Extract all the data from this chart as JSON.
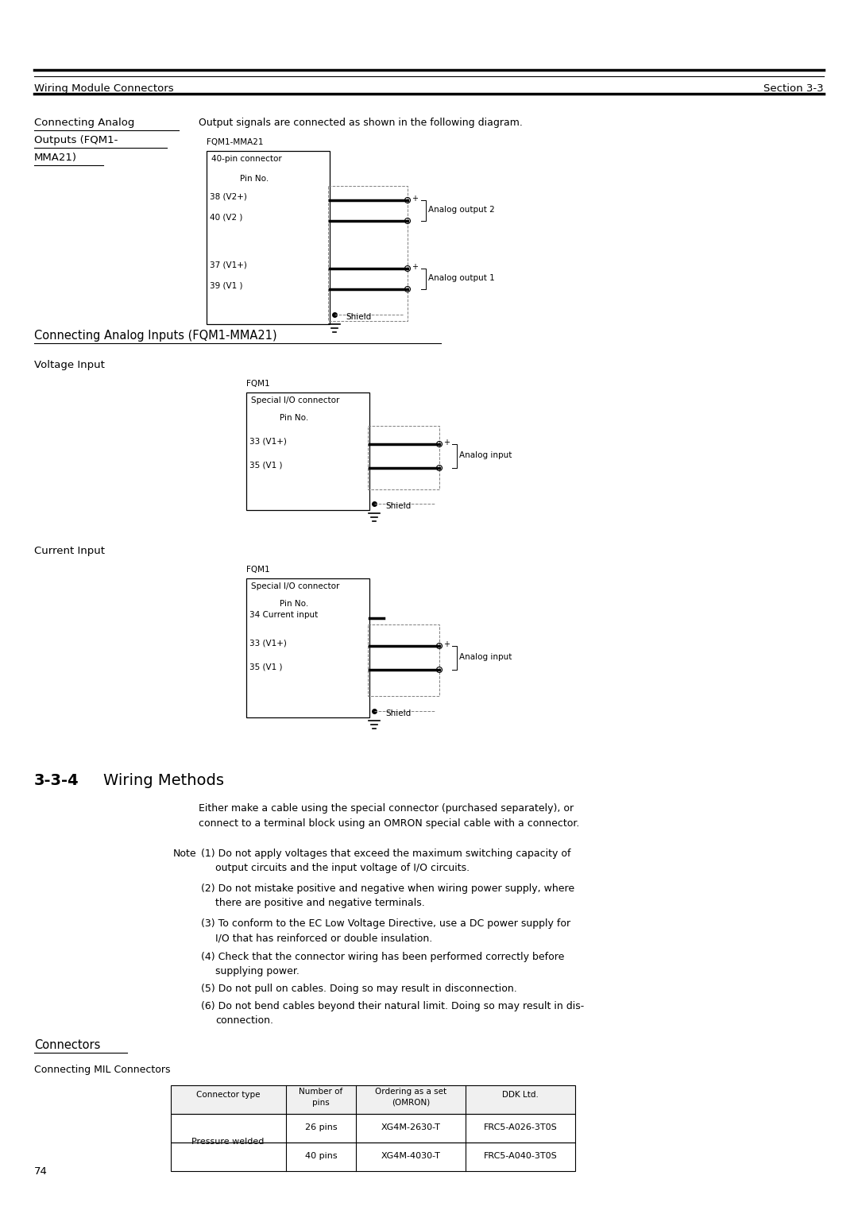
{
  "page_num": "74",
  "header_left": "Wiring Module Connectors",
  "header_right": "Section 3-3",
  "bg_color": "#ffffff",
  "section1_line1": "Connecting Analog",
  "section1_line2": "Outputs (FQM1-",
  "section1_line3": "MMA21)",
  "section1_desc": "Output signals are connected as shown in the following diagram.",
  "diag1_title": "FQM1-MMA21",
  "diag1_connector": "40-pin connector",
  "diag1_pin_no": "Pin No.",
  "diag1_pins": [
    "38 (V2+)",
    "40 (V2 )",
    "37 (V1+)",
    "39 (V1 )"
  ],
  "diag1_out_labels": [
    "Analog output 2",
    "Analog output 1"
  ],
  "shield_label": "Shield",
  "section2_title": "Connecting Analog Inputs (FQM1-MMA21)",
  "section2_sub1": "Voltage Input",
  "diag2_title": "FQM1",
  "diag2_connector": "Special I/O connector",
  "diag2_pin_no": "Pin No.",
  "diag2_pins": [
    "33 (V1+)",
    "35 (V1 )"
  ],
  "diag2_in_label": "Analog input",
  "section2_sub2": "Current Input",
  "diag3_title": "FQM1",
  "diag3_connector": "Special I/O connector",
  "diag3_pin_no": "Pin No.",
  "diag3_extra": "34 Current input",
  "diag3_pins": [
    "33 (V1+)",
    "35 (V1 )"
  ],
  "diag3_in_label": "Analog input",
  "wm_title_num": "3-3-4",
  "wm_title_text": "Wiring Methods",
  "wm_desc1": "Either make a cable using the special connector (purchased separately), or",
  "wm_desc2": "connect to a terminal block using an OMRON special cable with a connector.",
  "note_label": "Note",
  "note1a": "(1) Do not apply voltages that exceed the maximum switching capacity of",
  "note1b": "    output circuits and the input voltage of I/O circuits.",
  "note2a": "(2) Do not mistake positive and negative when wiring power supply, where",
  "note2b": "    there are positive and negative terminals.",
  "note3a": "(3) To conform to the EC Low Voltage Directive, use a DC power supply for",
  "note3b": "    I/O that has reinforced or double insulation.",
  "note4a": "(4) Check that the connector wiring has been performed correctly before",
  "note4b": "    supplying power.",
  "note5": "(5) Do not pull on cables. Doing so may result in disconnection.",
  "note6a": "(6) Do not bend cables beyond their natural limit. Doing so may result in dis-",
  "note6b": "    connection.",
  "conn_title": "Connectors",
  "conn_sub": "Connecting MIL Connectors",
  "th1": "Connector type",
  "th2": "Number of",
  "th2b": "pins",
  "th3": "Ordering as a set",
  "th3b": "(OMRON)",
  "th4": "DDK Ltd.",
  "tr1c1": "Pressure welded",
  "tr1c2": "26 pins",
  "tr1c3": "XG4M-2630-T",
  "tr1c4": "FRC5-A026-3T0S",
  "tr2c2": "40 pins",
  "tr2c3": "XG4M-4030-T",
  "tr2c4": "FRC5-A040-3T0S"
}
